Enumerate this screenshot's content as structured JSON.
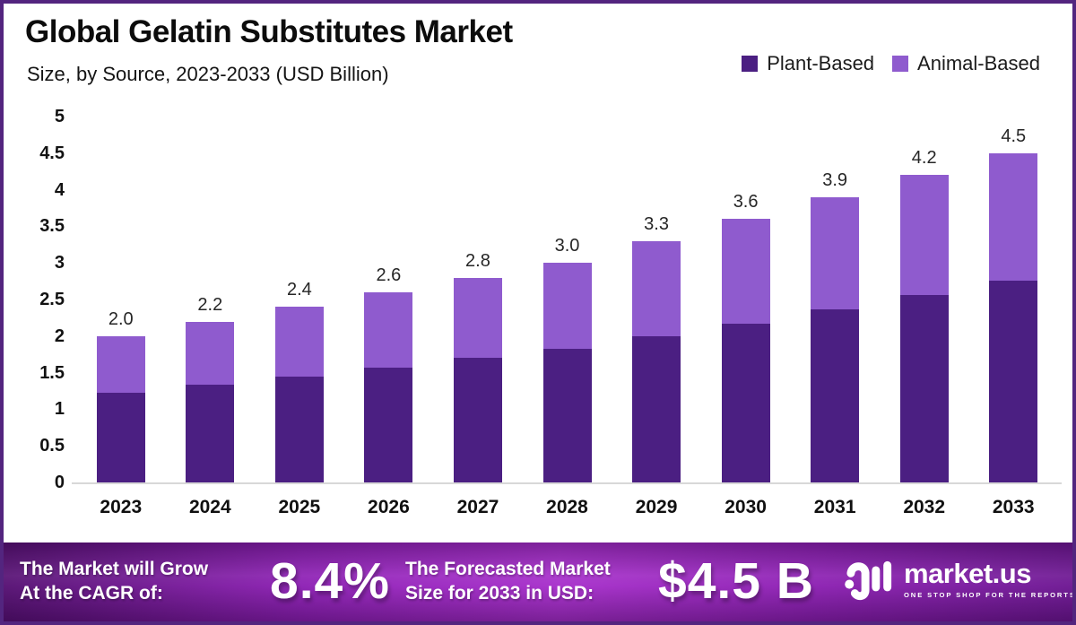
{
  "chart_data": {
    "type": "bar",
    "stacked": true,
    "title": "Global Gelatin Substitutes Market",
    "subtitle": "Size, by Source, 2023-2033 (USD Billion)",
    "unit": "USD Billion",
    "categories": [
      "2023",
      "2024",
      "2025",
      "2026",
      "2027",
      "2028",
      "2029",
      "2030",
      "2031",
      "2032",
      "2033"
    ],
    "series": [
      {
        "name": "Plant-Based",
        "color": "#4b1f82",
        "values": [
          1.22,
          1.33,
          1.45,
          1.57,
          1.7,
          1.83,
          2.0,
          2.17,
          2.36,
          2.56,
          2.76
        ]
      },
      {
        "name": "Animal-Based",
        "color": "#8f5bce",
        "values": [
          0.78,
          0.87,
          0.95,
          1.03,
          1.1,
          1.17,
          1.3,
          1.43,
          1.54,
          1.64,
          1.74
        ]
      }
    ],
    "totals": [
      "2.0",
      "2.2",
      "2.4",
      "2.6",
      "2.8",
      "3.0",
      "3.3",
      "3.6",
      "3.9",
      "4.2",
      "4.5"
    ],
    "ylim": [
      0,
      5
    ],
    "yticks": [
      "5",
      "4.5",
      "4",
      "3.5",
      "3",
      "2.5",
      "2",
      "1.5",
      "1",
      "0.5",
      "0"
    ],
    "grid": false,
    "legend_position": "top-right"
  },
  "banner": {
    "cagr_label_line1": "The Market will Grow",
    "cagr_label_line2": "At the CAGR of:",
    "cagr_value": "8.4%",
    "forecast_label_line1": "The Forecasted Market",
    "forecast_label_line2": "Size for 2033 in USD:",
    "forecast_value": "$4.5 B",
    "logo_text": "market.us",
    "logo_tagline": "ONE STOP SHOP FOR THE REPORTS"
  },
  "colors": {
    "plant": "#4b1f82",
    "animal": "#8f5bce",
    "frame_border": "#53257f",
    "axis_line": "#d8d8d8"
  }
}
